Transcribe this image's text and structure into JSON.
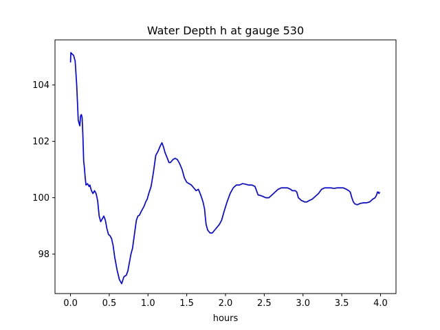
{
  "chart_data": {
    "type": "line",
    "title": "Water Depth h at gauge 530",
    "xlabel": "hours",
    "ylabel": "",
    "xlim": [
      -0.2,
      4.2
    ],
    "ylim": [
      96.6,
      105.6
    ],
    "x_ticks": [
      0.0,
      0.5,
      1.0,
      1.5,
      2.0,
      2.5,
      3.0,
      3.5,
      4.0
    ],
    "x_tick_labels": [
      "0.0",
      "0.5",
      "1.0",
      "1.5",
      "2.0",
      "2.5",
      "3.0",
      "3.5",
      "4.0"
    ],
    "y_ticks": [
      98,
      100,
      102,
      104
    ],
    "y_tick_labels": [
      "98",
      "100",
      "102",
      "104"
    ],
    "grid": false,
    "line_color": "#0000ff",
    "series": [
      {
        "x": [
          0.0,
          0.005,
          0.02,
          0.04,
          0.06,
          0.08,
          0.1,
          0.12,
          0.13,
          0.14,
          0.15,
          0.16,
          0.17,
          0.18,
          0.19,
          0.2,
          0.22,
          0.24,
          0.25,
          0.27,
          0.29,
          0.31,
          0.33,
          0.35,
          0.37,
          0.39,
          0.41,
          0.43,
          0.45,
          0.47,
          0.49,
          0.51,
          0.53,
          0.55,
          0.57,
          0.6,
          0.63,
          0.66,
          0.69,
          0.72,
          0.74,
          0.76,
          0.78,
          0.8,
          0.82,
          0.85,
          0.87,
          0.89,
          0.91,
          0.93,
          0.95,
          0.97,
          0.99,
          1.01,
          1.04,
          1.07,
          1.1,
          1.13,
          1.16,
          1.18,
          1.2,
          1.22,
          1.25,
          1.27,
          1.29,
          1.32,
          1.35,
          1.38,
          1.41,
          1.44,
          1.47,
          1.5,
          1.53,
          1.56,
          1.59,
          1.62,
          1.65,
          1.68,
          1.71,
          1.73,
          1.74,
          1.75,
          1.77,
          1.8,
          1.83,
          1.86,
          1.89,
          1.92,
          1.95,
          1.98,
          2.02,
          2.06,
          2.1,
          2.14,
          2.18,
          2.22,
          2.26,
          2.3,
          2.34,
          2.38,
          2.42,
          2.45,
          2.48,
          2.52,
          2.56,
          2.6,
          2.64,
          2.68,
          2.72,
          2.76,
          2.8,
          2.84,
          2.86,
          2.88,
          2.9,
          2.92,
          2.94,
          2.96,
          2.98,
          3.0,
          3.02,
          3.05,
          3.08,
          3.12,
          3.16,
          3.2,
          3.24,
          3.28,
          3.32,
          3.36,
          3.4,
          3.44,
          3.48,
          3.52,
          3.56,
          3.59,
          3.61,
          3.63,
          3.65,
          3.67,
          3.7,
          3.74,
          3.78,
          3.82,
          3.86,
          3.9,
          3.93,
          3.95,
          3.96,
          3.97,
          3.98,
          3.99
        ],
        "values": [
          104.8,
          105.15,
          105.1,
          105.05,
          104.85,
          104.0,
          102.75,
          102.55,
          102.9,
          102.95,
          102.85,
          102.2,
          101.3,
          101.05,
          100.7,
          100.45,
          100.5,
          100.4,
          100.45,
          100.25,
          100.15,
          100.25,
          100.15,
          99.9,
          99.35,
          99.15,
          99.25,
          99.35,
          99.2,
          98.9,
          98.7,
          98.65,
          98.55,
          98.3,
          97.9,
          97.45,
          97.1,
          96.95,
          97.2,
          97.25,
          97.4,
          97.7,
          98.0,
          98.2,
          98.6,
          99.2,
          99.35,
          99.38,
          99.5,
          99.6,
          99.7,
          99.85,
          99.95,
          100.15,
          100.4,
          100.9,
          101.5,
          101.65,
          101.85,
          101.95,
          101.8,
          101.6,
          101.4,
          101.25,
          101.25,
          101.35,
          101.4,
          101.35,
          101.2,
          101.0,
          100.7,
          100.55,
          100.5,
          100.45,
          100.35,
          100.25,
          100.3,
          100.1,
          99.85,
          99.6,
          99.3,
          99.05,
          98.85,
          98.75,
          98.75,
          98.85,
          98.95,
          99.05,
          99.2,
          99.5,
          99.85,
          100.15,
          100.35,
          100.45,
          100.45,
          100.5,
          100.48,
          100.45,
          100.45,
          100.4,
          100.1,
          100.08,
          100.05,
          100.0,
          100.0,
          100.1,
          100.2,
          100.3,
          100.35,
          100.35,
          100.35,
          100.3,
          100.25,
          100.25,
          100.25,
          100.2,
          100.0,
          99.95,
          99.9,
          99.88,
          99.85,
          99.85,
          99.9,
          99.95,
          100.05,
          100.15,
          100.3,
          100.35,
          100.35,
          100.35,
          100.33,
          100.35,
          100.35,
          100.35,
          100.3,
          100.25,
          100.2,
          100.0,
          99.85,
          99.78,
          99.75,
          99.8,
          99.82,
          99.82,
          99.85,
          99.95,
          100.0,
          100.1,
          100.2,
          100.2,
          100.15,
          100.2
        ]
      }
    ]
  }
}
